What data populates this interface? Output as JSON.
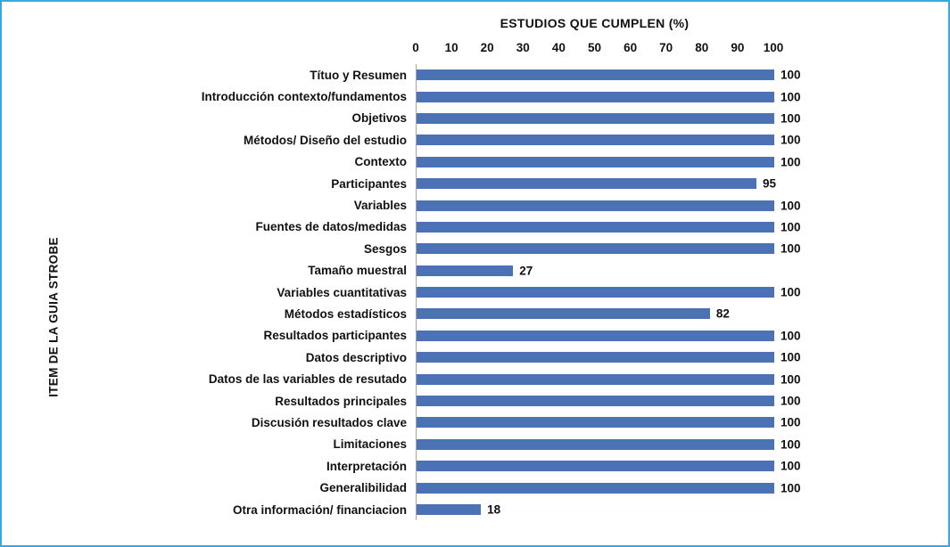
{
  "frame": {
    "border_color": "#35a9e0",
    "background": "#ffffff"
  },
  "chart_data": {
    "type": "bar",
    "orientation": "horizontal",
    "title": "ESTUDIOS QUE CUMPLEN (%)",
    "ylabel": "ITEM DE LA GUIA STROBE",
    "xlabel": "",
    "xlim": [
      0,
      100
    ],
    "xticks": [
      0,
      10,
      20,
      30,
      40,
      50,
      60,
      70,
      80,
      90,
      100
    ],
    "grid": false,
    "legend": false,
    "bar_color": "#4a72b4",
    "axis_line_color": "#a6a6a6",
    "categories": [
      "Títuo y Resumen",
      "Introducción contexto/fundamentos",
      "Objetivos",
      "Métodos/ Diseño del estudio",
      "Contexto",
      "Participantes",
      "Variables",
      "Fuentes de datos/medidas",
      "Sesgos",
      "Tamaño muestral",
      "Variables cuantitativas",
      "Métodos estadísticos",
      "Resultados participantes",
      "Datos descriptivo",
      "Datos de las variables de resutado",
      "Resultados principales",
      "Discusión resultados clave",
      "Limitaciones",
      "Interpretación",
      "Generalibilidad",
      "Otra información/ financiacion"
    ],
    "values": [
      100,
      100,
      100,
      100,
      100,
      95,
      100,
      100,
      100,
      27,
      100,
      82,
      100,
      100,
      100,
      100,
      100,
      100,
      100,
      100,
      18
    ]
  }
}
